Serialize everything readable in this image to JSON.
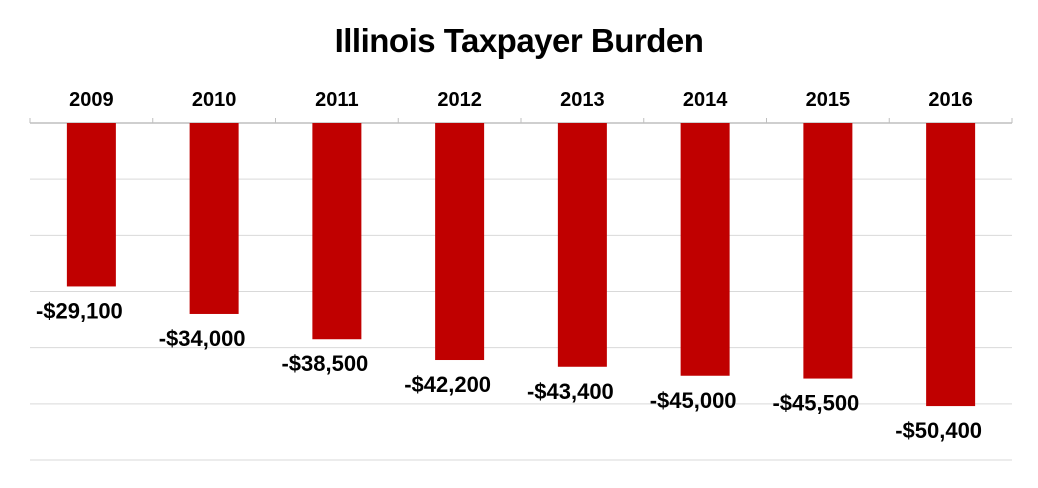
{
  "chart_data": {
    "type": "bar",
    "title": "Illinois Taxpayer Burden",
    "categories": [
      "2009",
      "2010",
      "2011",
      "2012",
      "2013",
      "2014",
      "2015",
      "2016"
    ],
    "values": [
      -29100,
      -34000,
      -38500,
      -42200,
      -43400,
      -45000,
      -45500,
      -50400
    ],
    "data_labels": [
      "-$29,100",
      "-$34,000",
      "-$38,500",
      "-$42,200",
      "-$43,400",
      "-$45,000",
      "-$45,500",
      "-$50,400"
    ],
    "xlabel": "",
    "ylabel": "",
    "ylim": [
      -60000,
      0
    ],
    "x_axis_position": "top",
    "y_axis_labels_shown": false,
    "grid": true,
    "legend": "none",
    "bar_color": "#C00000",
    "grid_color": "#D9D9D9"
  }
}
